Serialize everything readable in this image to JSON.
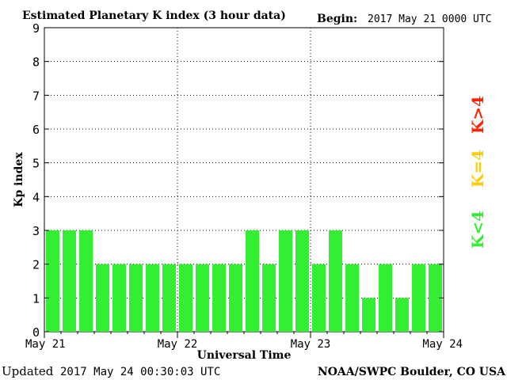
{
  "header": {
    "title": "Estimated Planetary K index (3 hour data)",
    "begin_label": "Begin:",
    "begin_value": "2017 May 21 0000 UTC"
  },
  "footer": {
    "updated_label": "Updated",
    "updated_value": "2017 May 24 00:30:03 UTC",
    "source": "NOAA/SWPC Boulder, CO USA"
  },
  "legend": {
    "low": {
      "label": "K<4",
      "color": "#33ee33"
    },
    "mid": {
      "label": "K=4",
      "color": "#ffcc00"
    },
    "high": {
      "label": "K>4",
      "color": "#ff2200"
    }
  },
  "chart_data": {
    "type": "bar",
    "title": "Estimated Planetary K index (3 hour data)",
    "xlabel": "Universal Time",
    "ylabel": "Kp index",
    "ylim": [
      0,
      9
    ],
    "yticks": [
      "0",
      "1",
      "2",
      "3",
      "4",
      "5",
      "6",
      "7",
      "8",
      "9"
    ],
    "x_tick_labels": [
      "May 21",
      "May 22",
      "May 23",
      "May 24"
    ],
    "values": [
      3,
      3,
      3,
      2,
      2,
      2,
      2,
      2,
      2,
      2,
      2,
      2,
      3,
      2,
      3,
      3,
      2,
      3,
      2,
      1,
      2,
      1,
      2,
      2
    ],
    "bar_color": "#33ee33",
    "grid": true
  }
}
